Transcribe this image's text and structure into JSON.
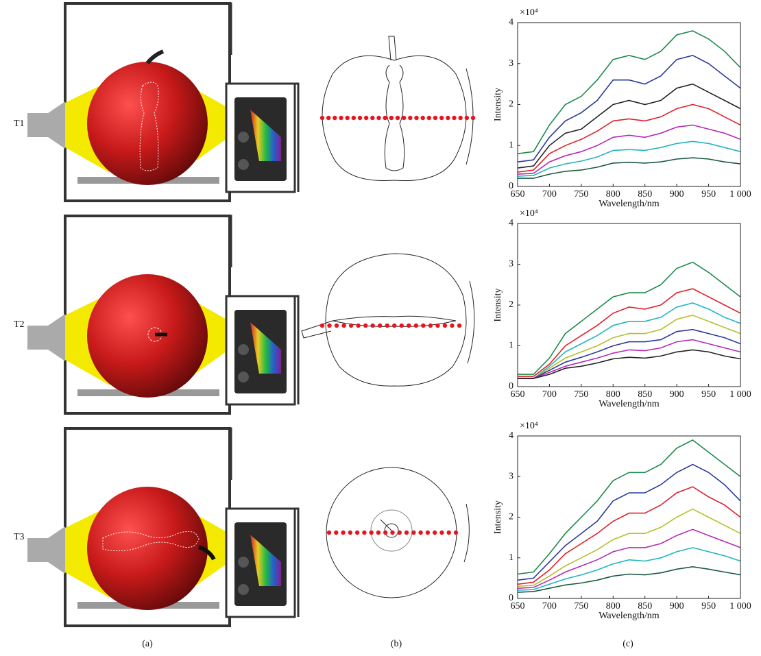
{
  "row_labels": [
    "T1",
    "T2",
    "T3"
  ],
  "panel_labels": [
    "(a)",
    "(b)",
    "(c)"
  ],
  "chart_data": [
    {
      "type": "line",
      "xlabel": "Wavelength/nm",
      "ylabel": "Intensity",
      "y_multiplier": "×10⁴",
      "x": [
        650,
        675,
        700,
        725,
        750,
        775,
        800,
        825,
        850,
        875,
        900,
        925,
        950,
        975,
        1000
      ],
      "xlim": [
        650,
        1000
      ],
      "xticks": [
        650,
        700,
        750,
        800,
        850,
        900,
        950,
        {
          "value": 1000,
          "label": "1 000"
        }
      ],
      "ylim": [
        0,
        4
      ],
      "yticks": [
        0,
        1,
        2,
        3,
        4
      ],
      "series": [
        {
          "color": "#1b8a4a",
          "values": [
            0.8,
            0.85,
            1.5,
            2.0,
            2.2,
            2.6,
            3.1,
            3.2,
            3.1,
            3.3,
            3.7,
            3.8,
            3.6,
            3.3,
            2.9
          ]
        },
        {
          "color": "#2a3a9a",
          "values": [
            0.6,
            0.65,
            1.2,
            1.6,
            1.8,
            2.1,
            2.6,
            2.6,
            2.5,
            2.7,
            3.1,
            3.2,
            3.0,
            2.7,
            2.4
          ]
        },
        {
          "color": "#222222",
          "values": [
            0.45,
            0.5,
            1.0,
            1.3,
            1.4,
            1.7,
            2.0,
            2.1,
            2.0,
            2.1,
            2.4,
            2.5,
            2.3,
            2.1,
            1.9
          ]
        },
        {
          "color": "#e0202a",
          "values": [
            0.35,
            0.4,
            0.8,
            1.0,
            1.15,
            1.35,
            1.6,
            1.65,
            1.6,
            1.7,
            1.9,
            2.0,
            1.9,
            1.7,
            1.5
          ]
        },
        {
          "color": "#b52ab5",
          "values": [
            0.3,
            0.32,
            0.6,
            0.75,
            0.85,
            1.0,
            1.2,
            1.25,
            1.2,
            1.3,
            1.45,
            1.5,
            1.4,
            1.3,
            1.15
          ]
        },
        {
          "color": "#20b5c0",
          "values": [
            0.25,
            0.27,
            0.45,
            0.55,
            0.62,
            0.72,
            0.88,
            0.9,
            0.88,
            0.95,
            1.05,
            1.1,
            1.05,
            0.95,
            0.85
          ]
        },
        {
          "color": "#1a5a40",
          "values": [
            0.2,
            0.2,
            0.3,
            0.37,
            0.4,
            0.47,
            0.57,
            0.59,
            0.57,
            0.6,
            0.67,
            0.7,
            0.67,
            0.6,
            0.55
          ]
        }
      ]
    },
    {
      "type": "line",
      "xlabel": "Wavelength/nm",
      "ylabel": "Intensity",
      "y_multiplier": "×10⁴",
      "x": [
        650,
        675,
        700,
        725,
        750,
        775,
        800,
        825,
        850,
        875,
        900,
        925,
        950,
        975,
        1000
      ],
      "xlim": [
        650,
        1000
      ],
      "xticks": [
        650,
        700,
        750,
        800,
        850,
        900,
        950,
        {
          "value": 1000,
          "label": "1 000"
        }
      ],
      "ylim": [
        0,
        4
      ],
      "yticks": [
        0,
        1,
        2,
        3,
        4
      ],
      "series": [
        {
          "color": "#1b8a4a",
          "values": [
            0.3,
            0.3,
            0.7,
            1.3,
            1.6,
            1.9,
            2.2,
            2.3,
            2.3,
            2.5,
            2.9,
            3.05,
            2.8,
            2.5,
            2.2
          ]
        },
        {
          "color": "#e0202a",
          "values": [
            0.25,
            0.25,
            0.55,
            1.0,
            1.25,
            1.5,
            1.8,
            1.95,
            1.9,
            2.0,
            2.3,
            2.4,
            2.2,
            2.0,
            1.8
          ]
        },
        {
          "color": "#20b5c0",
          "values": [
            0.2,
            0.2,
            0.5,
            0.85,
            1.05,
            1.25,
            1.5,
            1.6,
            1.6,
            1.7,
            1.95,
            2.05,
            1.9,
            1.7,
            1.55
          ]
        },
        {
          "color": "#b5c02a",
          "values": [
            0.2,
            0.2,
            0.45,
            0.7,
            0.85,
            1.0,
            1.2,
            1.3,
            1.3,
            1.4,
            1.65,
            1.75,
            1.6,
            1.45,
            1.3
          ]
        },
        {
          "color": "#2a3a9a",
          "values": [
            0.2,
            0.2,
            0.4,
            0.6,
            0.72,
            0.85,
            1.0,
            1.1,
            1.1,
            1.15,
            1.35,
            1.4,
            1.3,
            1.2,
            1.05
          ]
        },
        {
          "color": "#b52ab5",
          "values": [
            0.2,
            0.2,
            0.35,
            0.5,
            0.6,
            0.7,
            0.82,
            0.9,
            0.88,
            0.95,
            1.1,
            1.15,
            1.05,
            0.95,
            0.85
          ]
        },
        {
          "color": "#222222",
          "values": [
            0.2,
            0.2,
            0.3,
            0.45,
            0.5,
            0.58,
            0.68,
            0.72,
            0.7,
            0.75,
            0.85,
            0.9,
            0.85,
            0.75,
            0.68
          ]
        }
      ]
    },
    {
      "type": "line",
      "xlabel": "Wavelength/nm",
      "ylabel": "Intensity",
      "y_multiplier": "×10⁴",
      "x": [
        650,
        675,
        700,
        725,
        750,
        775,
        800,
        825,
        850,
        875,
        900,
        925,
        950,
        975,
        1000
      ],
      "xlim": [
        650,
        1000
      ],
      "xticks": [
        650,
        700,
        750,
        800,
        850,
        900,
        950,
        {
          "value": 1000,
          "label": "1 000"
        }
      ],
      "ylim": [
        0,
        4
      ],
      "yticks": [
        0,
        1,
        2,
        3,
        4
      ],
      "series": [
        {
          "color": "#1b8a4a",
          "values": [
            0.6,
            0.65,
            1.1,
            1.6,
            2.0,
            2.4,
            2.9,
            3.1,
            3.1,
            3.3,
            3.7,
            3.9,
            3.6,
            3.3,
            3.0
          ]
        },
        {
          "color": "#2a3a9a",
          "values": [
            0.45,
            0.5,
            0.9,
            1.3,
            1.6,
            1.9,
            2.4,
            2.6,
            2.6,
            2.8,
            3.1,
            3.3,
            3.1,
            2.8,
            2.4
          ]
        },
        {
          "color": "#e0202a",
          "values": [
            0.35,
            0.4,
            0.7,
            1.1,
            1.35,
            1.6,
            1.9,
            2.1,
            2.1,
            2.3,
            2.6,
            2.75,
            2.5,
            2.3,
            2.0
          ]
        },
        {
          "color": "#b5c02a",
          "values": [
            0.3,
            0.32,
            0.55,
            0.8,
            1.0,
            1.2,
            1.45,
            1.6,
            1.6,
            1.75,
            2.0,
            2.2,
            2.0,
            1.8,
            1.6
          ]
        },
        {
          "color": "#b52ab5",
          "values": [
            0.25,
            0.27,
            0.45,
            0.65,
            0.8,
            0.95,
            1.15,
            1.25,
            1.25,
            1.35,
            1.55,
            1.7,
            1.55,
            1.4,
            1.25
          ]
        },
        {
          "color": "#20b5c0",
          "values": [
            0.2,
            0.22,
            0.35,
            0.48,
            0.58,
            0.7,
            0.85,
            0.95,
            0.92,
            1.0,
            1.15,
            1.25,
            1.15,
            1.05,
            0.92
          ]
        },
        {
          "color": "#1a5a40",
          "values": [
            0.15,
            0.17,
            0.25,
            0.33,
            0.38,
            0.45,
            0.55,
            0.6,
            0.58,
            0.63,
            0.72,
            0.78,
            0.72,
            0.65,
            0.58
          ]
        }
      ]
    }
  ]
}
